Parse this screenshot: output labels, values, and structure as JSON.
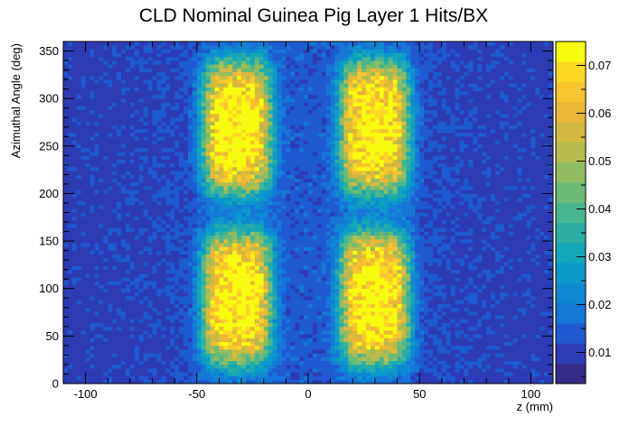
{
  "chart_data": {
    "type": "heatmap",
    "title": "CLD Nominal Guinea Pig Layer 1 Hits/BX",
    "xlabel": "z (mm)",
    "ylabel": "Azimuthal Angle (deg)",
    "xlim": [
      -110,
      110
    ],
    "ylim": [
      0,
      360
    ],
    "x_ticks": [
      -100,
      -50,
      0,
      50,
      100
    ],
    "y_ticks": [
      0,
      50,
      100,
      150,
      200,
      250,
      300,
      350
    ],
    "z_range": [
      0.0035,
      0.075
    ],
    "z_ticks": [
      0.01,
      0.02,
      0.03,
      0.04,
      0.05,
      0.06,
      0.07
    ],
    "bins": {
      "x": 110,
      "y": 90
    },
    "hot_spots": [
      {
        "z_center": -32,
        "phi_center": 270,
        "z_width": 11,
        "phi_width": 45,
        "peak": 0.065
      },
      {
        "z_center": 30,
        "phi_center": 270,
        "z_width": 11,
        "phi_width": 45,
        "peak": 0.065
      },
      {
        "z_center": -32,
        "phi_center": 90,
        "z_width": 11,
        "phi_width": 45,
        "peak": 0.065
      },
      {
        "z_center": 30,
        "phi_center": 90,
        "z_width": 11,
        "phi_width": 45,
        "peak": 0.065
      }
    ],
    "background_level": 0.012,
    "palette": [
      "#352a87",
      "#2d3cb5",
      "#1e5ad2",
      "#1576d8",
      "#0f8ad1",
      "#0b9bcb",
      "#14a7b8",
      "#2aaea4",
      "#47b68e",
      "#6bbb77",
      "#91bd61",
      "#b5bc4d",
      "#d3b840",
      "#ebb737",
      "#f8c52f",
      "#fbd925",
      "#f9fb0e"
    ],
    "grid": false,
    "legend": "colorbar-right"
  }
}
